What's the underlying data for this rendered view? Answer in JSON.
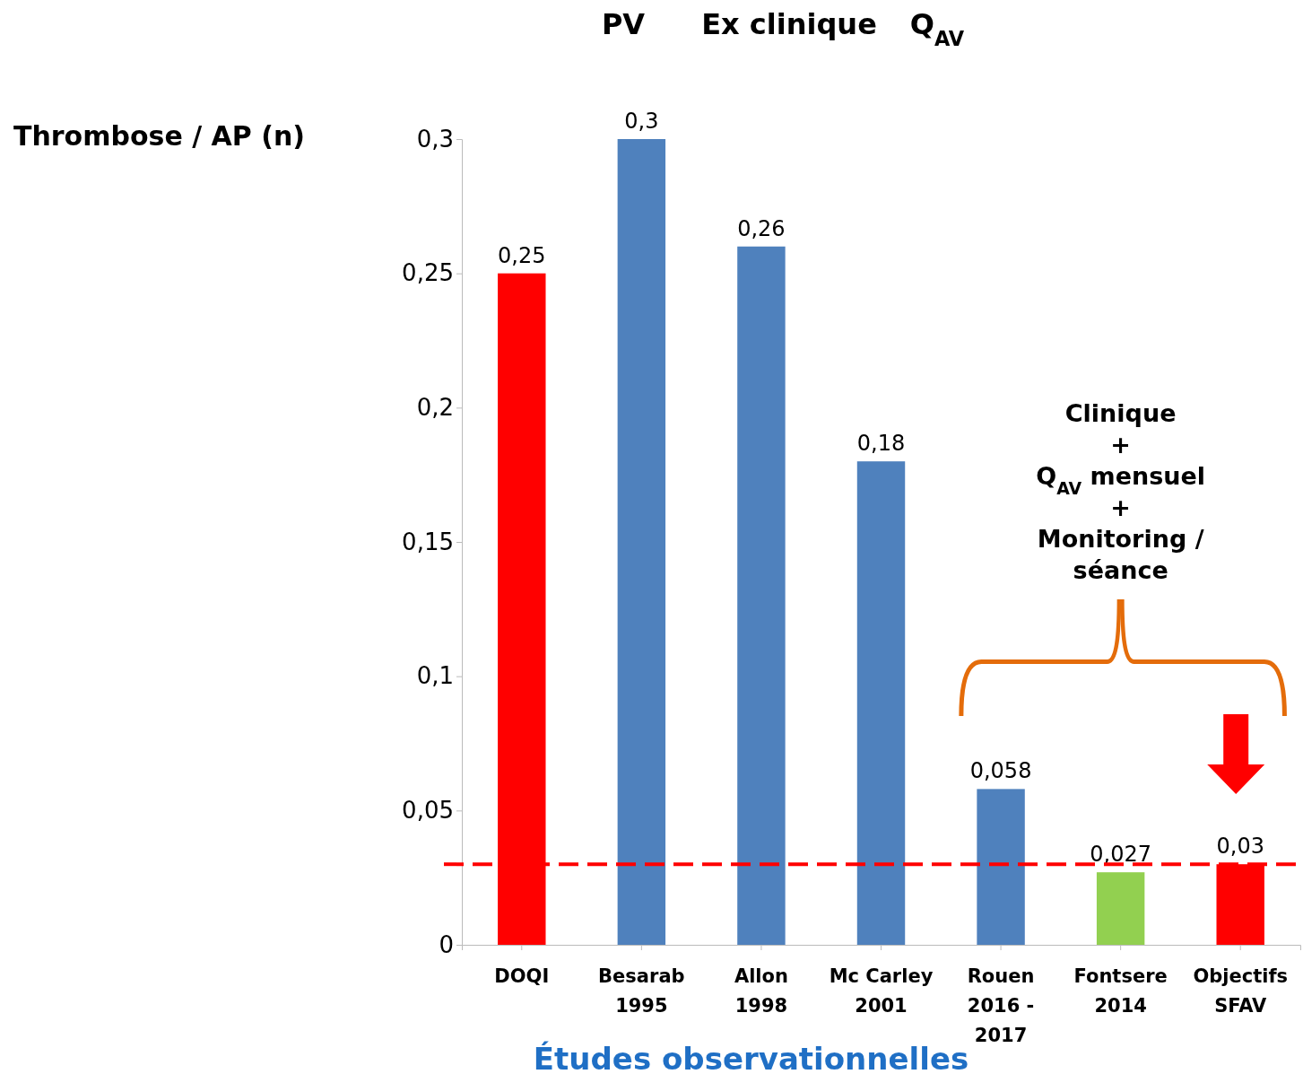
{
  "chart_data": {
    "type": "bar",
    "ylabel": "Thrombose / AP (n)",
    "xlabel": "Études observationnelles",
    "categories": [
      "DOQI",
      "Besarab 1995",
      "Allon 1998",
      "Mc Carley 2001",
      "Rouen 2016 - 2017",
      "Fontsere 2014",
      "Objectifs SFAV"
    ],
    "values": [
      0.25,
      0.3,
      0.26,
      0.18,
      0.058,
      0.027,
      0.03
    ],
    "colors": [
      "#ff0000",
      "#4f81bd",
      "#4f81bd",
      "#4f81bd",
      "#4f81bd",
      "#92d050",
      "#ff0000"
    ],
    "value_labels": [
      "0,25",
      "0,3",
      "0,26",
      "0,18",
      "0,058",
      "0,027",
      "0,03"
    ],
    "ylim": [
      0,
      0.3
    ],
    "yticks": [
      {
        "value": 0,
        "label": "0"
      },
      {
        "value": 0.05,
        "label": "0,05"
      },
      {
        "value": 0.1,
        "label": "0,1"
      },
      {
        "value": 0.15,
        "label": "0,15"
      },
      {
        "value": 0.2,
        "label": "0,2"
      },
      {
        "value": 0.25,
        "label": "0,25"
      },
      {
        "value": 0.3,
        "label": "0,3"
      }
    ],
    "ref_lines": [
      {
        "axis": "y",
        "value": 0.03,
        "color": "#ff0000",
        "line_style": "dashed"
      }
    ],
    "annotations": [
      "PV",
      "Ex clinique",
      "Q$_{AV}$",
      "Clinique\n+\nQ$_{AV}$ mensuel\n+\nMonitoring /\nséance"
    ],
    "grid": false
  }
}
